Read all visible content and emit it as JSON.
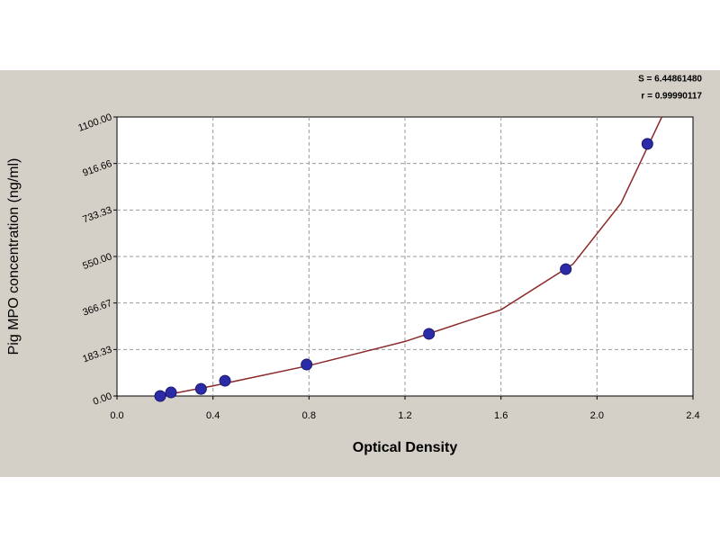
{
  "chart_data": {
    "type": "scatter",
    "x_label": "Optical Density",
    "y_label": "Pig MPO concentration (ng/ml)",
    "annotations": [
      "S = 6.44861480",
      "r = 0.99990117"
    ],
    "x": [
      0.18,
      0.225,
      0.35,
      0.45,
      0.79,
      1.3,
      1.87,
      2.21
    ],
    "values": [
      0,
      14,
      28,
      60,
      124,
      245,
      500,
      994
    ],
    "color": "#2b2ba8",
    "fit": {
      "x": [
        0.18,
        0.4,
        0.8,
        1.2,
        1.6,
        1.9,
        2.1,
        2.2,
        2.27
      ],
      "values": [
        0,
        40,
        120,
        215,
        340,
        520,
        760,
        960,
        1100
      ],
      "color": "#8b2a2a"
    },
    "xlim": [
      0,
      2.4
    ],
    "xticks": [
      {
        "value": 0,
        "label": "0.0"
      },
      {
        "value": 0.4,
        "label": "0.4"
      },
      {
        "value": 0.8,
        "label": "0.8"
      },
      {
        "value": 1.2,
        "label": "1.2"
      },
      {
        "value": 1.6,
        "label": "1.6"
      },
      {
        "value": 2,
        "label": "2.0"
      },
      {
        "value": 2.4,
        "label": "2.4"
      }
    ],
    "ylim": [
      0,
      1100
    ],
    "yticks": [
      {
        "value": 0,
        "label": "0.00"
      },
      {
        "value": 183.33,
        "label": "183.33"
      },
      {
        "value": 366.67,
        "label": "366.67"
      },
      {
        "value": 550,
        "label": "550.00"
      },
      {
        "value": 733.33,
        "label": "733.33"
      },
      {
        "value": 916.66,
        "label": "916.66"
      },
      {
        "value": 1100,
        "label": "1100.00"
      }
    ],
    "grid": true
  }
}
